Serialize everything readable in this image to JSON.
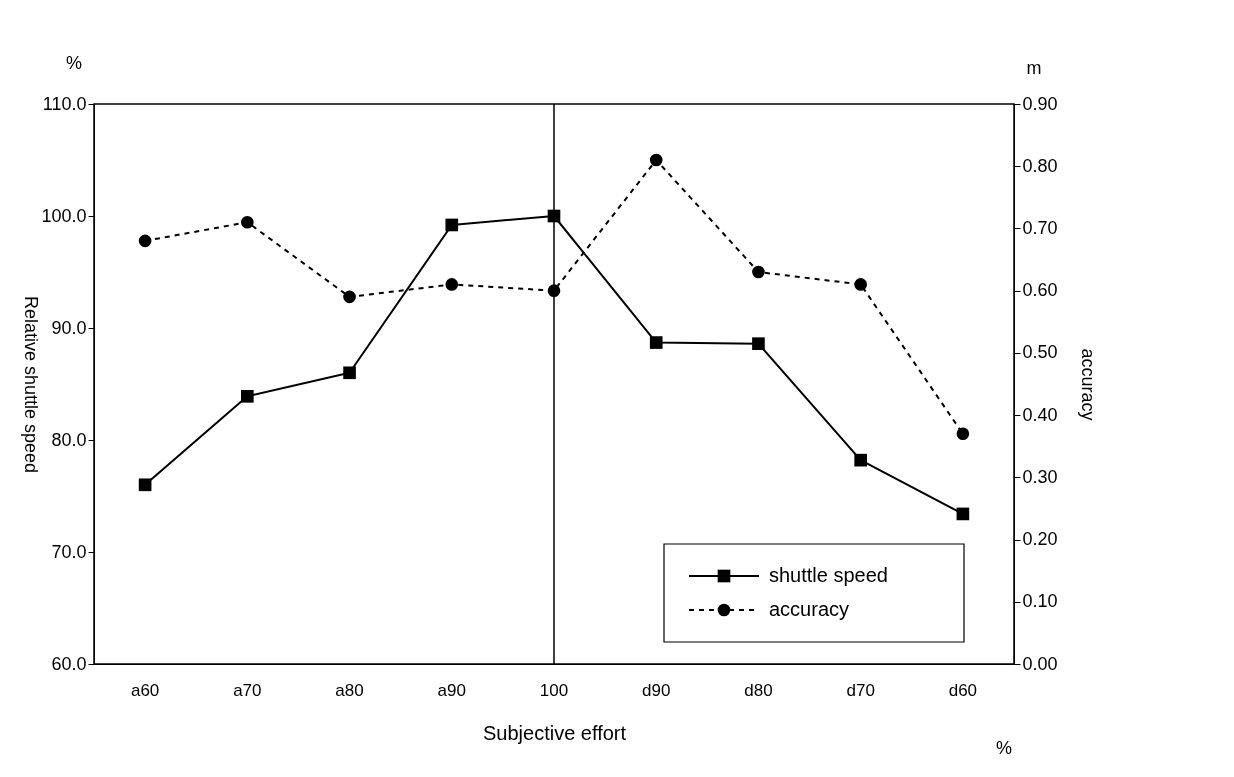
{
  "chart_data": {
    "type": "line",
    "xlabel": "Subjective effort",
    "ylabel": "Relative shuttle speed",
    "y2label": "accuracy",
    "categories": [
      "a60",
      "a70",
      "a80",
      "a90",
      "100",
      "d90",
      "d80",
      "d70",
      "d60"
    ],
    "series": [
      {
        "name": "shuttle speed",
        "color": "#000000",
        "marker": "square",
        "line_style": "solid",
        "values": [
          76.0,
          83.9,
          86.0,
          99.2,
          100.0,
          88.7,
          88.6,
          78.2,
          73.4
        ]
      },
      {
        "name": "accuracy",
        "color": "#000000",
        "marker": "circle",
        "line_style": "dashed",
        "axis": "y2",
        "values": [
          0.68,
          0.71,
          0.59,
          0.61,
          0.6,
          0.81,
          0.63,
          0.61,
          0.37
        ]
      }
    ],
    "ylim": [
      60,
      110
    ],
    "yticks": [
      {
        "value": 60,
        "label": "60.0"
      },
      {
        "value": 70,
        "label": "70.0"
      },
      {
        "value": 80,
        "label": "80.0"
      },
      {
        "value": 90,
        "label": "90.0"
      },
      {
        "value": 100,
        "label": "100.0"
      },
      {
        "value": 110,
        "label": "110.0"
      }
    ],
    "y2lim": [
      0,
      0.9
    ],
    "y2ticks": [
      {
        "value": 0,
        "label": "0.00"
      },
      {
        "value": 0.1,
        "label": "0.10"
      },
      {
        "value": 0.2,
        "label": "0.20"
      },
      {
        "value": 0.3,
        "label": "0.30"
      },
      {
        "value": 0.4,
        "label": "0.40"
      },
      {
        "value": 0.5,
        "label": "0.50"
      },
      {
        "value": 0.6,
        "label": "0.60"
      },
      {
        "value": 0.7,
        "label": "0.70"
      },
      {
        "value": 0.8,
        "label": "0.80"
      },
      {
        "value": 0.9,
        "label": "0.90"
      }
    ],
    "ref_lines": [
      {
        "axis": "x",
        "value": "100",
        "color": "#000000"
      }
    ],
    "annotations": [
      "%",
      "m",
      "%"
    ],
    "grid": false,
    "legend": "bottom right"
  }
}
